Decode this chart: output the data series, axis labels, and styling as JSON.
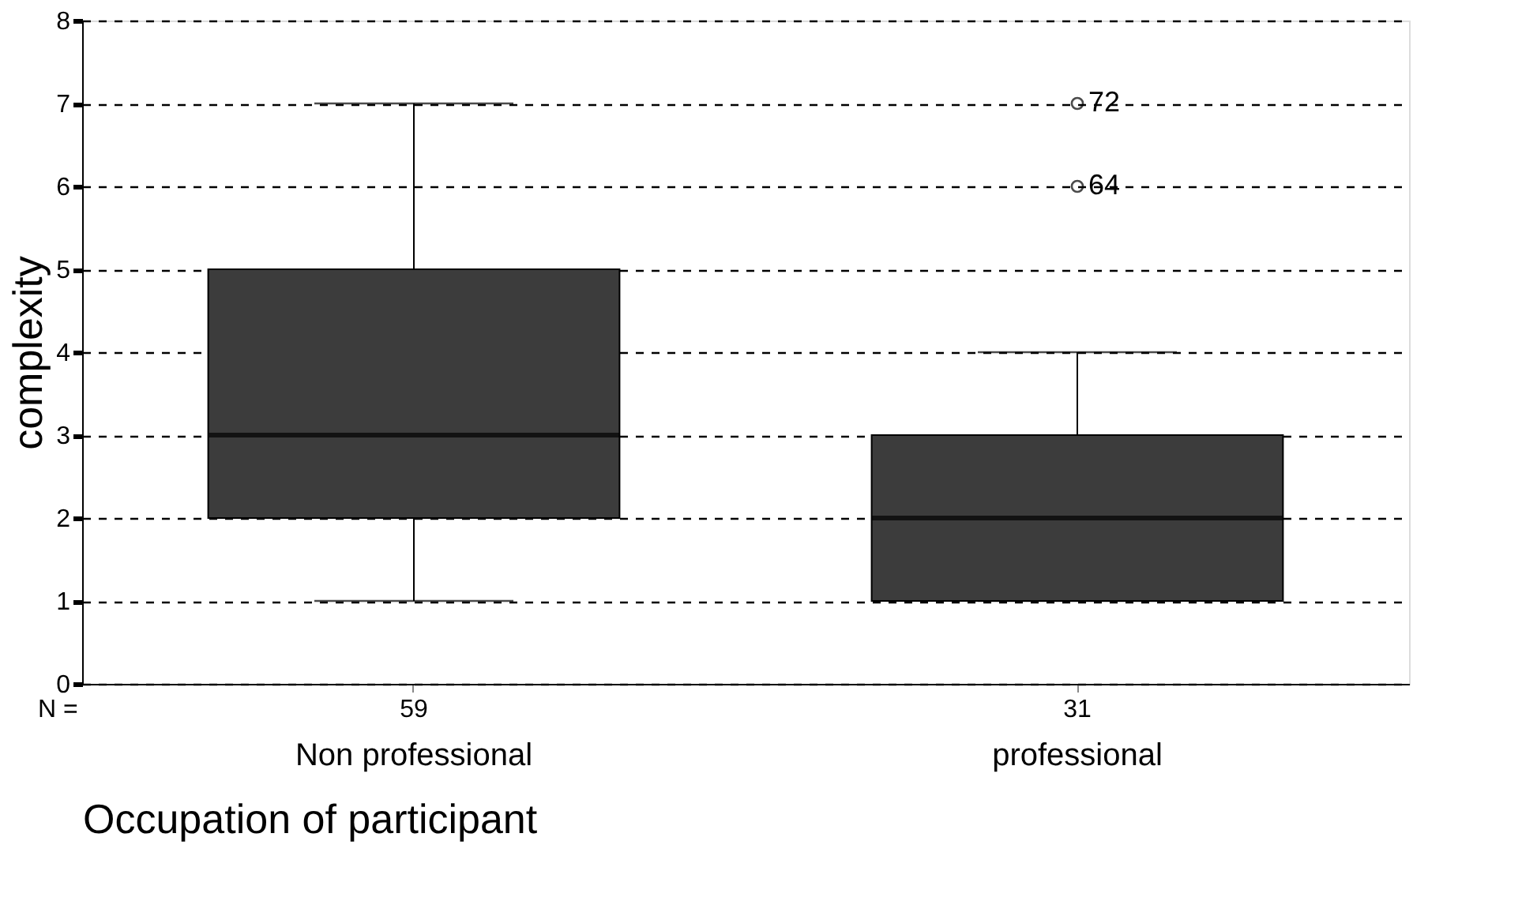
{
  "chart_data": {
    "type": "box",
    "xlabel": "Occupation of participant",
    "ylabel": "complexity",
    "categories": [
      "Non professional",
      "professional"
    ],
    "boxes": [
      {
        "low": 1,
        "q1": 2,
        "median": 3,
        "q3": 5,
        "high": 7
      },
      {
        "low": 1,
        "q1": 1,
        "median": 2,
        "q3": 3,
        "high": 4,
        "outliers": [
          7,
          6
        ]
      }
    ],
    "colors": [
      "#3c3c3c",
      "#3c3c3c"
    ],
    "ylim": [
      0,
      8
    ],
    "yticks": [
      0,
      1,
      2,
      3,
      4,
      5,
      6,
      7,
      8
    ],
    "grid": "y",
    "annotations": [
      "72",
      "64",
      "N =",
      "59",
      "31"
    ]
  }
}
